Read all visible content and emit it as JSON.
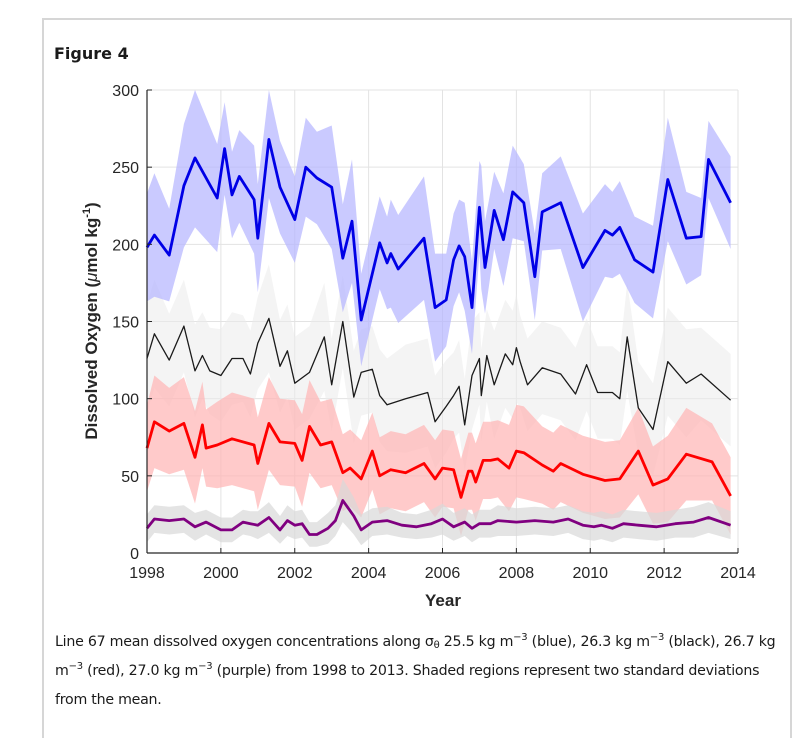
{
  "figure": {
    "title": "Figure 4"
  },
  "caption": {
    "parts": [
      {
        "t": "Line 67 mean dissolved oxygen concentrations along σ"
      },
      {
        "t": "θ",
        "sub": true
      },
      {
        "t": " 25.5 kg m"
      },
      {
        "t": "−3",
        "sup": true
      },
      {
        "t": " (blue), 26.3 kg m"
      },
      {
        "t": "−3",
        "sup": true
      },
      {
        "t": " (black), 26.7 kg m"
      },
      {
        "t": "−3",
        "sup": true
      },
      {
        "t": " (red), 27.0 kg m"
      },
      {
        "t": "−3",
        "sup": true
      },
      {
        "t": " (purple) from 1998 to 2013. Shaded regions represent two standard deviations from the mean."
      }
    ]
  },
  "chart_data": {
    "type": "line",
    "title": "",
    "xlabel": "Year",
    "ylabel": "Dissolved Oxygen (μmol kg⁻¹)",
    "ylabel_parts": {
      "main": "Dissolved Oxygen (",
      "mu": "μ",
      "unit": "mol kg",
      "sup": "-1",
      "close": ")"
    },
    "xlim": [
      1998,
      2014
    ],
    "ylim": [
      0,
      300
    ],
    "xticks": [
      1998,
      2000,
      2002,
      2004,
      2006,
      2008,
      2010,
      2012,
      2014
    ],
    "yticks": [
      0,
      50,
      100,
      150,
      200,
      250,
      300
    ],
    "grid": true,
    "legend": "none",
    "series": [
      {
        "name": "σθ 25.5 kg m-3",
        "color": "#0000e6",
        "band_color": "#b3b3ff",
        "x": [
          1998.0,
          1998.2,
          1998.6,
          1999.0,
          1999.3,
          1999.9,
          2000.1,
          2000.3,
          2000.5,
          2000.9,
          2001.0,
          2001.3,
          2001.6,
          2002.0,
          2002.3,
          2002.6,
          2003.0,
          2003.3,
          2003.55,
          2003.8,
          2004.3,
          2004.5,
          2004.6,
          2004.8,
          2005.5,
          2005.8,
          2006.1,
          2006.3,
          2006.45,
          2006.6,
          2006.8,
          2007.0,
          2007.05,
          2007.15,
          2007.4,
          2007.65,
          2007.9,
          2008.2,
          2008.5,
          2008.7,
          2009.2,
          2009.8,
          2010.4,
          2010.6,
          2010.8,
          2011.2,
          2011.7,
          2012.1,
          2012.6,
          2013.0,
          2013.2,
          2013.8
        ],
        "mean": [
          198,
          206,
          193,
          238,
          256,
          230,
          262,
          232,
          244,
          229,
          204,
          268,
          237,
          216,
          250,
          243,
          237,
          191,
          215,
          151,
          201,
          188,
          194,
          184,
          204,
          159,
          164,
          190,
          199,
          192,
          159,
          224,
          211,
          185,
          222,
          203,
          234,
          227,
          179,
          221,
          227,
          185,
          209,
          206,
          211,
          190,
          182,
          242,
          204,
          205,
          255,
          227
        ],
        "sd2": [
          35,
          40,
          30,
          40,
          45,
          35,
          30,
          28,
          30,
          35,
          35,
          38,
          30,
          28,
          32,
          30,
          40,
          35,
          40,
          30,
          30,
          30,
          35,
          35,
          40,
          35,
          30,
          30,
          30,
          35,
          30,
          30,
          40,
          30,
          25,
          30,
          30,
          25,
          28,
          25,
          30,
          35,
          30,
          28,
          30,
          28,
          30,
          40,
          30,
          25,
          25,
          30
        ]
      },
      {
        "name": "σθ 26.3 kg m-3",
        "color": "#1a1a1a",
        "band_color": "#ebebeb",
        "x": [
          1998.0,
          1998.2,
          1998.6,
          1999.0,
          1999.3,
          1999.5,
          1999.7,
          2000.0,
          2000.3,
          2000.6,
          2000.8,
          2001.0,
          2001.3,
          2001.6,
          2001.8,
          2002.0,
          2002.4,
          2002.8,
          2003.0,
          2003.3,
          2003.6,
          2003.8,
          2004.1,
          2004.3,
          2004.5,
          2005.0,
          2005.6,
          2005.8,
          2006.1,
          2006.3,
          2006.45,
          2006.6,
          2006.8,
          2007.0,
          2007.05,
          2007.2,
          2007.4,
          2007.7,
          2007.9,
          2008.0,
          2008.1,
          2008.3,
          2008.7,
          2009.2,
          2009.6,
          2009.9,
          2010.2,
          2010.6,
          2010.8,
          2011.0,
          2011.3,
          2011.7,
          2012.1,
          2012.6,
          2013.0,
          2013.8
        ],
        "mean": [
          126,
          142,
          125,
          147,
          118,
          128,
          118,
          115,
          126,
          126,
          116,
          136,
          152,
          121,
          131,
          110,
          117,
          140,
          109,
          150,
          101,
          117,
          119,
          102,
          96,
          100,
          104,
          85,
          95,
          102,
          108,
          83,
          115,
          126,
          102,
          128,
          109,
          129,
          122,
          133,
          124,
          109,
          120,
          116,
          103,
          122,
          104,
          104,
          100,
          140,
          94,
          80,
          124,
          110,
          116,
          99
        ],
        "sd2": [
          35,
          35,
          30,
          30,
          30,
          28,
          28,
          30,
          30,
          28,
          28,
          30,
          35,
          30,
          30,
          30,
          30,
          35,
          30,
          30,
          30,
          28,
          28,
          30,
          30,
          35,
          35,
          30,
          30,
          28,
          30,
          30,
          35,
          30,
          30,
          30,
          35,
          35,
          35,
          35,
          30,
          30,
          30,
          30,
          30,
          30,
          30,
          30,
          30,
          35,
          30,
          30,
          35,
          35,
          30,
          30
        ]
      },
      {
        "name": "σθ 26.7 kg m-3",
        "color": "#ff0000",
        "band_color": "#ffb3b3",
        "x": [
          1998.0,
          1998.2,
          1998.6,
          1999.0,
          1999.3,
          1999.5,
          1999.6,
          1999.9,
          2000.3,
          2000.9,
          2001.0,
          2001.3,
          2001.6,
          2002.0,
          2002.2,
          2002.4,
          2002.7,
          2003.0,
          2003.3,
          2003.5,
          2003.8,
          2004.1,
          2004.3,
          2004.6,
          2005.0,
          2005.5,
          2005.8,
          2006.0,
          2006.3,
          2006.5,
          2006.7,
          2006.8,
          2006.9,
          2007.1,
          2007.3,
          2007.5,
          2007.8,
          2008.0,
          2008.2,
          2008.7,
          2009.0,
          2009.2,
          2009.8,
          2010.4,
          2010.8,
          2011.3,
          2011.7,
          2012.1,
          2012.6,
          2013.3,
          2013.8
        ],
        "mean": [
          68,
          85,
          79,
          84,
          62,
          83,
          68,
          70,
          74,
          70,
          58,
          84,
          72,
          71,
          60,
          82,
          70,
          72,
          52,
          55,
          48,
          66,
          50,
          54,
          52,
          58,
          48,
          55,
          54,
          36,
          53,
          53,
          46,
          60,
          60,
          61,
          55,
          66,
          65,
          57,
          53,
          58,
          51,
          47,
          48,
          66,
          44,
          48,
          64,
          59,
          37
        ],
        "sd2": [
          28,
          30,
          28,
          30,
          30,
          28,
          25,
          28,
          30,
          30,
          30,
          30,
          28,
          28,
          30,
          30,
          28,
          28,
          25,
          25,
          25,
          25,
          25,
          25,
          25,
          25,
          25,
          25,
          25,
          25,
          25,
          25,
          25,
          25,
          25,
          25,
          28,
          30,
          30,
          25,
          25,
          25,
          25,
          25,
          25,
          28,
          25,
          28,
          30,
          25,
          25
        ]
      },
      {
        "name": "σθ 27.0 kg m-3",
        "color": "#800080",
        "band_color": "#d9d9d9",
        "x": [
          1998.0,
          1998.2,
          1998.6,
          1999.0,
          1999.3,
          1999.6,
          2000.0,
          2000.3,
          2000.6,
          2000.8,
          2001.0,
          2001.3,
          2001.6,
          2001.8,
          2002.0,
          2002.2,
          2002.4,
          2002.6,
          2002.9,
          2003.1,
          2003.3,
          2003.6,
          2003.8,
          2004.1,
          2004.5,
          2004.9,
          2005.3,
          2005.7,
          2006.0,
          2006.3,
          2006.6,
          2006.8,
          2007.0,
          2007.3,
          2007.5,
          2008.0,
          2008.5,
          2009.0,
          2009.4,
          2009.8,
          2010.1,
          2010.3,
          2010.6,
          2010.9,
          2011.3,
          2011.8,
          2012.3,
          2012.8,
          2013.2,
          2013.8
        ],
        "mean": [
          16,
          22,
          21,
          22,
          17,
          20,
          15,
          15,
          20,
          19,
          18,
          23,
          15,
          21,
          18,
          19,
          12,
          12,
          16,
          21,
          34,
          24,
          15,
          20,
          21,
          18,
          17,
          19,
          22,
          17,
          20,
          16,
          19,
          19,
          21,
          20,
          21,
          20,
          22,
          18,
          17,
          18,
          16,
          19,
          18,
          17,
          19,
          20,
          23,
          18
        ],
        "sd2": [
          9,
          9,
          9,
          9,
          9,
          8,
          8,
          8,
          8,
          8,
          9,
          10,
          9,
          10,
          9,
          9,
          8,
          8,
          10,
          10,
          14,
          12,
          10,
          9,
          9,
          8,
          8,
          9,
          10,
          9,
          9,
          9,
          9,
          9,
          10,
          9,
          9,
          9,
          9,
          9,
          9,
          9,
          9,
          9,
          9,
          9,
          9,
          10,
          10,
          9
        ]
      }
    ]
  }
}
